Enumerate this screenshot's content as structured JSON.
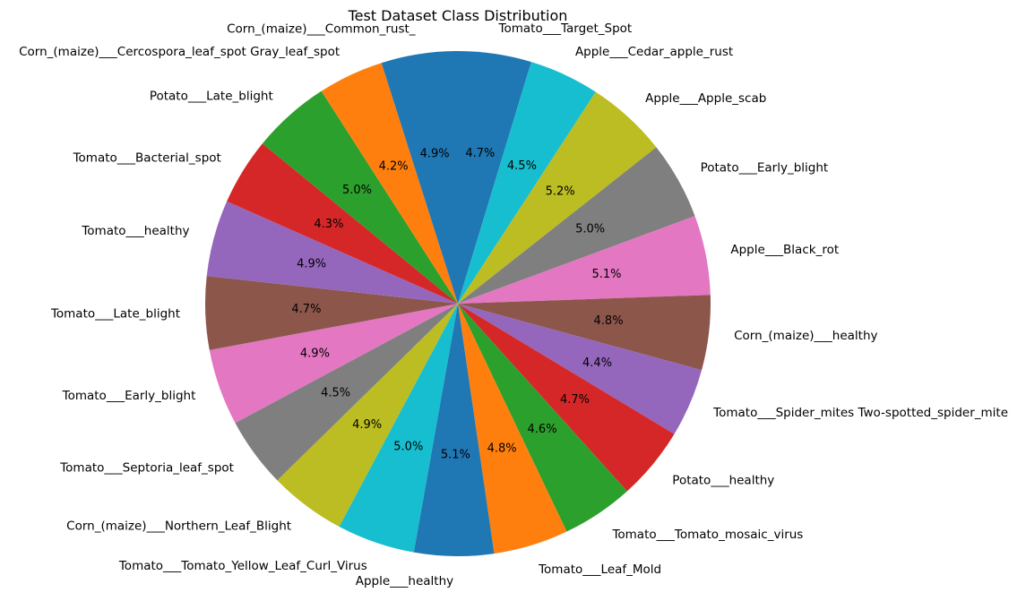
{
  "chart_data": {
    "type": "pie",
    "title": "Test Dataset Class Distribution",
    "start_angle_deg": 90,
    "direction": "clockwise",
    "slices": [
      {
        "label": "Tomato___Target_Spot",
        "value": 4.7,
        "pct_label": "4.7%",
        "color": "#1f77b4"
      },
      {
        "label": "Apple___Cedar_apple_rust",
        "value": 4.5,
        "pct_label": "4.5%",
        "color": "#17becf"
      },
      {
        "label": "Apple___Apple_scab",
        "value": 5.2,
        "pct_label": "5.2%",
        "color": "#bcbd22"
      },
      {
        "label": "Potato___Early_blight",
        "value": 5.0,
        "pct_label": "5.0%",
        "color": "#7f7f7f"
      },
      {
        "label": "Apple___Black_rot",
        "value": 5.1,
        "pct_label": "5.1%",
        "color": "#e377c2"
      },
      {
        "label": "Corn_(maize)___healthy",
        "value": 4.8,
        "pct_label": "4.8%",
        "color": "#8c564b"
      },
      {
        "label": "Tomato___Spider_mites Two-spotted_spider_mite",
        "value": 4.4,
        "pct_label": "4.4%",
        "color": "#9467bd"
      },
      {
        "label": "Potato___healthy",
        "value": 4.7,
        "pct_label": "4.7%",
        "color": "#d62728"
      },
      {
        "label": "Tomato___Tomato_mosaic_virus",
        "value": 4.6,
        "pct_label": "4.6%",
        "color": "#2ca02c"
      },
      {
        "label": "Tomato___Leaf_Mold",
        "value": 4.8,
        "pct_label": "4.8%",
        "color": "#ff7f0e"
      },
      {
        "label": "Apple___healthy",
        "value": 5.1,
        "pct_label": "5.1%",
        "color": "#1f77b4"
      },
      {
        "label": "Tomato___Tomato_Yellow_Leaf_Curl_Virus",
        "value": 5.0,
        "pct_label": "5.0%",
        "color": "#17becf"
      },
      {
        "label": "Corn_(maize)___Northern_Leaf_Blight",
        "value": 4.9,
        "pct_label": "4.9%",
        "color": "#bcbd22"
      },
      {
        "label": "Tomato___Septoria_leaf_spot",
        "value": 4.5,
        "pct_label": "4.5%",
        "color": "#7f7f7f"
      },
      {
        "label": "Tomato___Early_blight",
        "value": 4.9,
        "pct_label": "4.9%",
        "color": "#e377c2"
      },
      {
        "label": "Tomato___Late_blight",
        "value": 4.7,
        "pct_label": "4.7%",
        "color": "#8c564b"
      },
      {
        "label": "Tomato___healthy",
        "value": 4.9,
        "pct_label": "4.9%",
        "color": "#9467bd"
      },
      {
        "label": "Tomato___Bacterial_spot",
        "value": 4.3,
        "pct_label": "4.3%",
        "color": "#d62728"
      },
      {
        "label": "Potato___Late_blight",
        "value": 5.0,
        "pct_label": "5.0%",
        "color": "#2ca02c"
      },
      {
        "label": "Corn_(maize)___Cercospora_leaf_spot Gray_leaf_spot",
        "value": 4.2,
        "pct_label": "4.2%",
        "color": "#ff7f0e"
      },
      {
        "label": "Corn_(maize)___Common_rust_",
        "value": 4.9,
        "pct_label": "4.9%",
        "color": "#1f77b4"
      }
    ]
  }
}
